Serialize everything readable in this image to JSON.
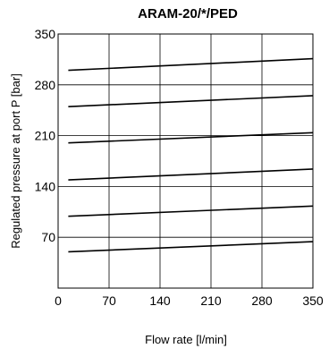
{
  "chart_data": {
    "type": "line",
    "title": "ARAM-20/*/PED",
    "xlabel": "Flow rate [l/min]",
    "ylabel": "Regulated pressure at port P [bar]",
    "xlim": [
      0,
      350
    ],
    "ylim": [
      0,
      350
    ],
    "xticks": [
      0,
      70,
      140,
      210,
      280,
      350
    ],
    "yticks": [
      70,
      140,
      210,
      280,
      350
    ],
    "xtick_labels": [
      "0",
      "70",
      "140",
      "210",
      "280",
      "350"
    ],
    "ytick_labels": [
      "70",
      "140",
      "210",
      "280",
      "350"
    ],
    "grid": true,
    "legend": "none",
    "line_color": "#000000",
    "series": [
      {
        "x": [
          14,
          350
        ],
        "y": [
          300,
          316
        ]
      },
      {
        "x": [
          14,
          350
        ],
        "y": [
          250,
          265
        ]
      },
      {
        "x": [
          14,
          350
        ],
        "y": [
          200,
          214
        ]
      },
      {
        "x": [
          14,
          350
        ],
        "y": [
          149,
          164
        ]
      },
      {
        "x": [
          14,
          350
        ],
        "y": [
          99,
          113
        ]
      },
      {
        "x": [
          14,
          350
        ],
        "y": [
          50,
          64
        ]
      }
    ]
  }
}
